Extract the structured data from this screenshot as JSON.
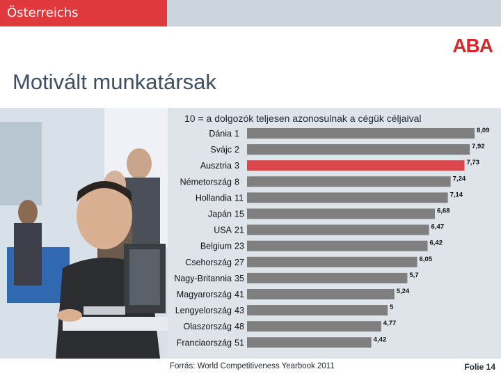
{
  "header": {
    "brand": "Österreichs Ansiedlungsberater",
    "logo": "ABA"
  },
  "slide": {
    "title": "Motivált munkatársak",
    "source": "Forrás: World Competitiveness Yearbook 2011",
    "page": "Folie 14"
  },
  "colors": {
    "brand_red": "#e03a3e",
    "bar": "#7f7f7f",
    "highlight": "#d9474a"
  },
  "chart_data": {
    "type": "bar",
    "orientation": "horizontal",
    "subtitle": "10 = a dolgozók teljesen azonosulnak a cégük céljaival",
    "categories": [
      "Dánia",
      "Svájc",
      "Ausztria",
      "Németország",
      "Hollandia",
      "Japán",
      "USA",
      "Belgium",
      "Csehország",
      "Nagy-Britannia",
      "Magyarország",
      "Lengyelország",
      "Olaszország",
      "Franciaország"
    ],
    "ranks": [
      "1",
      "2",
      "3",
      "8",
      "11",
      "15",
      "21",
      "23",
      "27",
      "35",
      "41",
      "43",
      "48",
      "51"
    ],
    "values": [
      8.09,
      7.92,
      7.73,
      7.24,
      7.14,
      6.68,
      6.47,
      6.42,
      6.05,
      5.7,
      5.24,
      5,
      4.77,
      4.42
    ],
    "value_labels": [
      "8,09",
      "7,92",
      "7,73",
      "7,24",
      "7,14",
      "6,68",
      "6,47",
      "6,42",
      "6,05",
      "5,7",
      "5,24",
      "5",
      "4,77",
      "4,42"
    ],
    "highlight_index": 2
  }
}
